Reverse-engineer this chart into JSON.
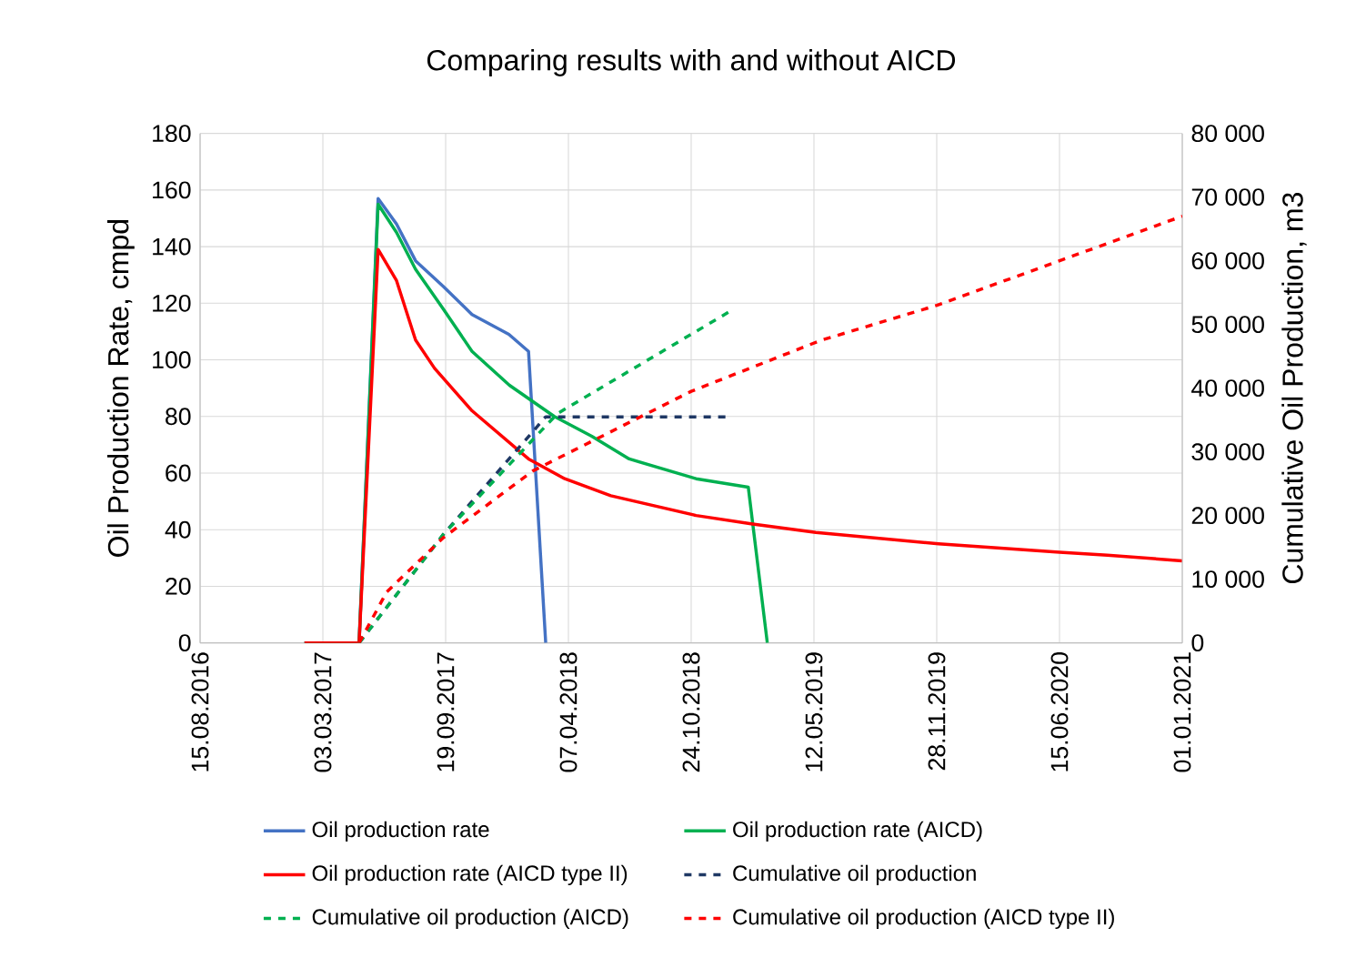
{
  "chart_data": {
    "type": "line",
    "title": "Comparing results with and without AICD",
    "ylabel": "Oil Production Rate, cmpd",
    "y2label": "Cumulative Oil Production, m3",
    "xlim": [
      "2016-08-15",
      "2021-01-01"
    ],
    "xticks": [
      {
        "value": "2016-08-15",
        "label": "15.08.2016"
      },
      {
        "value": "2017-03-03",
        "label": "03.03.2017"
      },
      {
        "value": "2017-09-19",
        "label": "19.09.2017"
      },
      {
        "value": "2018-04-07",
        "label": "07.04.2018"
      },
      {
        "value": "2018-10-24",
        "label": "24.10.2018"
      },
      {
        "value": "2019-05-12",
        "label": "12.05.2019"
      },
      {
        "value": "2019-11-28",
        "label": "28.11.2019"
      },
      {
        "value": "2020-06-15",
        "label": "15.06.2020"
      },
      {
        "value": "2021-01-01",
        "label": "01.01.2021"
      }
    ],
    "ylim": [
      0,
      180
    ],
    "yticks": [
      0,
      20,
      40,
      60,
      80,
      100,
      120,
      140,
      160,
      180
    ],
    "y2lim": [
      0,
      80000
    ],
    "y2ticks": [
      0,
      {
        "value": 10000,
        "label": "10 000"
      },
      {
        "value": 20000,
        "label": "20 000"
      },
      {
        "value": 30000,
        "label": "30 000"
      },
      {
        "value": 40000,
        "label": "40 000"
      },
      {
        "value": 50000,
        "label": "50 000"
      },
      {
        "value": 60000,
        "label": "60 000"
      },
      {
        "value": 70000,
        "label": "70 000"
      },
      {
        "value": 80000,
        "label": "80 000"
      }
    ],
    "grid": true,
    "legend": "bottom",
    "marker": "none",
    "series": [
      {
        "name": "Oil production rate",
        "color": "#4472c4",
        "line_style": "solid",
        "x": [
          "2017-02-01",
          "2017-05-01",
          "2017-06-01",
          "2017-07-01",
          "2017-08-01",
          "2017-09-15",
          "2017-11-01",
          "2017-12-31",
          "2018-02-01",
          "2018-03-01"
        ],
        "values": [
          0,
          0,
          157,
          148,
          135,
          126,
          116,
          109,
          103,
          0
        ]
      },
      {
        "name": "Oil production rate (AICD)",
        "color": "#00b050",
        "line_style": "solid",
        "x": [
          "2017-02-01",
          "2017-05-01",
          "2017-06-01",
          "2017-07-01",
          "2017-08-01",
          "2017-09-15",
          "2017-11-01",
          "2018-01-01",
          "2018-03-15",
          "2018-05-15",
          "2018-07-15",
          "2018-11-01",
          "2019-01-25",
          "2019-02-25"
        ],
        "values": [
          0,
          0,
          155,
          145,
          132,
          118,
          103,
          91,
          80,
          73,
          65,
          58,
          55,
          0
        ]
      },
      {
        "name": "Oil production rate  (AICD type II)",
        "color": "#ff0000",
        "line_style": "solid",
        "x": [
          "2017-02-01",
          "2017-05-01",
          "2017-06-01",
          "2017-07-01",
          "2017-08-01",
          "2017-09-01",
          "2017-11-01",
          "2018-02-01",
          "2018-04-01",
          "2018-06-15",
          "2018-11-01",
          "2019-02-01",
          "2019-05-15",
          "2019-12-01",
          "2020-06-15",
          "2020-09-01",
          "2021-01-01"
        ],
        "values": [
          0,
          0,
          139,
          128,
          107,
          97,
          82,
          65,
          58,
          52,
          45,
          42,
          39,
          35,
          32,
          31,
          29
        ]
      },
      {
        "name": "Cumulative oil production",
        "color": "#1f3864",
        "line_style": "dashed",
        "axis": "y2",
        "x": [
          "2017-05-01",
          "2017-09-15",
          "2018-03-01",
          "2018-12-25"
        ],
        "values": [
          0,
          17000,
          35500,
          35500
        ]
      },
      {
        "name": "Cumulative oil production  (AICD)",
        "color": "#00b050",
        "line_style": "dashed",
        "axis": "y2",
        "x": [
          "2017-05-01",
          "2017-09-15",
          "2018-03-20",
          "2018-12-25"
        ],
        "values": [
          0,
          17000,
          36000,
          52000
        ]
      },
      {
        "name": "Cumulative oil production (AICD type II)",
        "color": "#ff0000",
        "line_style": "dashed",
        "axis": "y2",
        "x": [
          "2017-05-01",
          "2017-06-15",
          "2017-09-15",
          "2018-02-08",
          "2018-10-24",
          "2019-05-23",
          "2019-11-28",
          "2020-06-15",
          "2021-01-01"
        ],
        "values": [
          0,
          8000,
          16500,
          27000,
          39500,
          47500,
          53000,
          60000,
          67000
        ]
      }
    ]
  }
}
